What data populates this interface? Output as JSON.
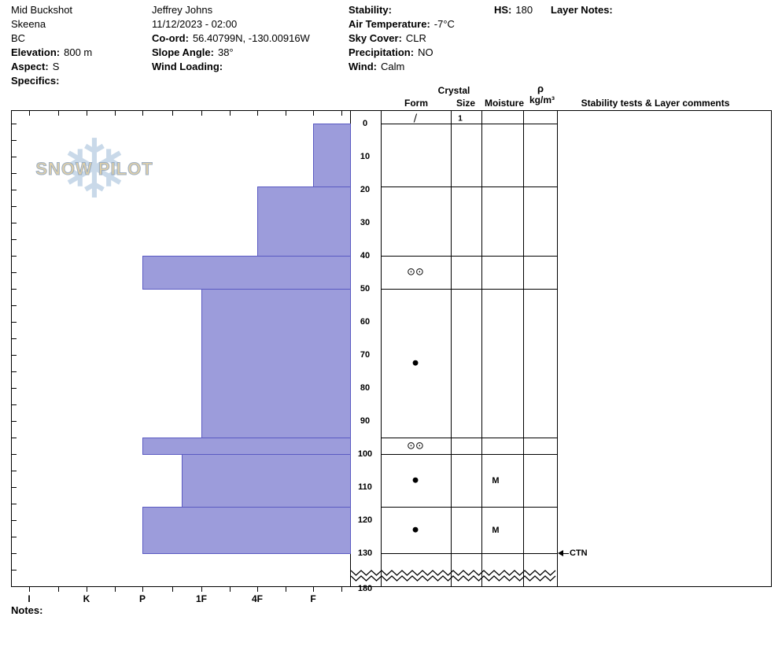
{
  "header": {
    "location": {
      "site": "Mid Buckshot",
      "region": "Skeena",
      "province": "BC",
      "elevation": {
        "label": "Elevation:",
        "value": "800 m"
      },
      "aspect": {
        "label": "Aspect:",
        "value": "S"
      },
      "specifics": {
        "label": "Specifics:",
        "value": ""
      }
    },
    "observation": {
      "observer": "Jeffrey Johns",
      "datetime": "11/12/2023 - 02:00",
      "coordinates": {
        "label": "Co-ord:",
        "value": "56.40799N, -130.00916W"
      },
      "slope_angle": {
        "label": "Slope Angle:",
        "value": "38°"
      },
      "wind_loading": {
        "label": "Wind Loading:",
        "value": ""
      }
    },
    "conditions": {
      "stability": {
        "label": "Stability:",
        "value": ""
      },
      "air_temperature": {
        "label": "Air Temperature:",
        "value": "-7°C"
      },
      "sky_cover": {
        "label": "Sky Cover:",
        "value": "CLR"
      },
      "precipitation": {
        "label": "Precipitation:",
        "value": "NO"
      },
      "wind": {
        "label": "Wind:",
        "value": "Calm"
      }
    },
    "hs": {
      "label": "HS:",
      "value": "180"
    },
    "layer_notes": {
      "label": "Layer Notes:",
      "value": ""
    }
  },
  "grid_headers": {
    "crystal": "Crystal",
    "form": "Form",
    "size": "Size",
    "moisture": "Moisture",
    "density_symbol": "ρ",
    "density_units": "kg/m³",
    "comments": "Stability tests & Layer comments"
  },
  "logo": {
    "text": "SNOW PILOT",
    "snowflake_icon": "❄"
  },
  "chart_data": {
    "type": "bar",
    "subtype": "snow-profile-hand-hardness",
    "orientation": "horizontal-bars-anchored-right",
    "depth_unit": "cm",
    "total_snow_height_cm": 180,
    "depth_axis_labels": [
      "0",
      "10",
      "20",
      "30",
      "40",
      "50",
      "60",
      "70",
      "80",
      "90",
      "100",
      "110",
      "120",
      "130"
    ],
    "bottom_depth_label": "180",
    "hardness_axis_labels": [
      "I",
      "K",
      "P",
      "1F",
      "4F",
      "F"
    ],
    "bar_color": "#9c9cdb",
    "bar_border_color": "#5a5ac2",
    "layers": [
      {
        "top_cm": 0,
        "bottom_cm": 19,
        "hardness": "F",
        "grain_form": "/",
        "grain_size_mm": "1",
        "moisture": "",
        "symbol_at": "top"
      },
      {
        "top_cm": 19,
        "bottom_cm": 40,
        "hardness": "4F",
        "grain_form": "",
        "grain_size_mm": "",
        "moisture": "",
        "symbol_at": "middle"
      },
      {
        "top_cm": 40,
        "bottom_cm": 50,
        "hardness": "P",
        "grain_form": "⊙⊙",
        "grain_size_mm": "",
        "moisture": "",
        "symbol_at": "middle"
      },
      {
        "top_cm": 50,
        "bottom_cm": 95,
        "hardness": "1F",
        "grain_form": "●",
        "grain_size_mm": "",
        "moisture": "",
        "symbol_at": "middle"
      },
      {
        "top_cm": 95,
        "bottom_cm": 100,
        "hardness": "P",
        "grain_form": "⊙⊙",
        "grain_size_mm": "",
        "moisture": "",
        "symbol_at": "middle"
      },
      {
        "top_cm": 100,
        "bottom_cm": 116,
        "hardness": "1F+",
        "grain_form": "●",
        "grain_size_mm": "",
        "moisture": "M",
        "symbol_at": "middle"
      },
      {
        "top_cm": 116,
        "bottom_cm": 130,
        "hardness": "P",
        "grain_form": "●",
        "grain_size_mm": "",
        "moisture": "M",
        "symbol_at": "middle"
      }
    ],
    "stability_tests": [
      {
        "label": "CTN",
        "depth_cm": 130
      }
    ],
    "depth_break": {
      "after_cm": 130,
      "bottom_label_cm": 180
    }
  },
  "footer": {
    "notes_label": "Notes:"
  }
}
